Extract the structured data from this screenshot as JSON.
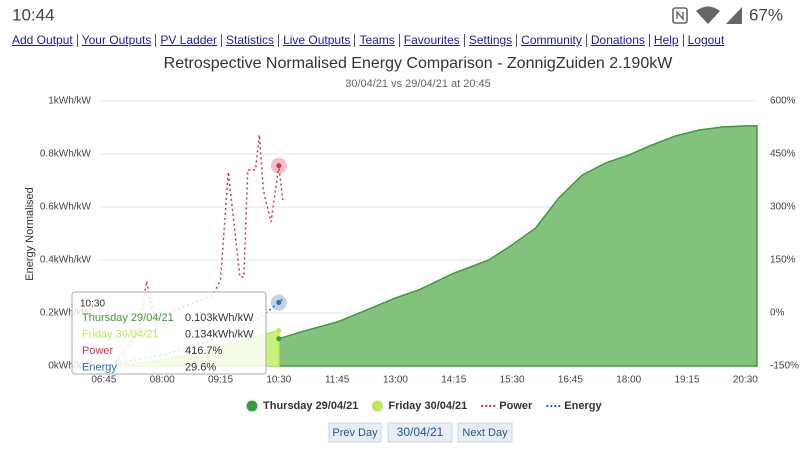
{
  "status_bar": {
    "time": "10:44",
    "battery": "67%"
  },
  "nav_links": [
    "Add Output",
    "Your Outputs",
    "PV Ladder",
    "Statistics",
    "Live Outputs",
    "Teams",
    "Favourites",
    "Settings",
    "Community",
    "Donations",
    "Help",
    "Logout"
  ],
  "chart_data": {
    "type": "line",
    "title": "Retrospective Normalised Energy Comparison - ZonnigZuiden 2.190kW",
    "subtitle": "30/04/21 vs 29/04/21 at 20:45",
    "y_label": "Energy Normalised",
    "xlim": [
      "06:40",
      "20:45"
    ],
    "xticks": [
      "06:45",
      "08:00",
      "09:15",
      "10:30",
      "11:45",
      "13:00",
      "14:15",
      "15:30",
      "16:45",
      "18:00",
      "19:15",
      "20:30"
    ],
    "ylim": [
      0,
      1
    ],
    "yticks": [
      {
        "value": 0,
        "label": "0kWh/kW"
      },
      {
        "value": 0.2,
        "label": "0.2kWh/kW"
      },
      {
        "value": 0.4,
        "label": "0.4kWh/kW"
      },
      {
        "value": 0.6,
        "label": "0.6kWh/kW"
      },
      {
        "value": 0.8,
        "label": "0.8kWh/kW"
      },
      {
        "value": 1,
        "label": "1kWh/kW"
      }
    ],
    "y2lim": [
      -150,
      600
    ],
    "y2ticks": [
      {
        "value": -150,
        "label": "-150%"
      },
      {
        "value": 0,
        "label": "0%"
      },
      {
        "value": 150,
        "label": "150%"
      },
      {
        "value": 300,
        "label": "300%"
      },
      {
        "value": 450,
        "label": "450%"
      },
      {
        "value": 600,
        "label": "600%"
      }
    ],
    "grid": true,
    "series": [
      {
        "name": "Thursday 29/04/21",
        "type": "area",
        "color": "#3d9a3d",
        "fill": "#83c27c",
        "x": [
          "06:40",
          "07:30",
          "08:00",
          "08:30",
          "09:00",
          "09:30",
          "10:00",
          "10:30",
          "11:00",
          "11:45",
          "12:30",
          "13:00",
          "13:30",
          "14:15",
          "15:00",
          "15:30",
          "16:00",
          "16:30",
          "17:00",
          "17:30",
          "18:00",
          "18:30",
          "19:00",
          "19:30",
          "20:00",
          "20:30",
          "20:45"
        ],
        "values": [
          0,
          0.01,
          0.02,
          0.035,
          0.05,
          0.07,
          0.088,
          0.103,
          0.13,
          0.166,
          0.22,
          0.257,
          0.287,
          0.35,
          0.4,
          0.457,
          0.52,
          0.634,
          0.72,
          0.766,
          0.796,
          0.834,
          0.868,
          0.89,
          0.902,
          0.906,
          0.906
        ]
      },
      {
        "name": "Friday 30/04/21",
        "type": "area",
        "color": "#b9ea5c",
        "fill": "#c9f27a",
        "x": [
          "06:40",
          "07:30",
          "08:30",
          "09:00",
          "09:30",
          "10:00",
          "10:30"
        ],
        "values": [
          0,
          0.01,
          0.04,
          0.06,
          0.085,
          0.11,
          0.134
        ]
      },
      {
        "name": "Power",
        "type": "line",
        "axis": "y2",
        "color": "#d3304c",
        "x": [
          "07:00",
          "07:30",
          "07:40",
          "07:50",
          "08:30",
          "09:05",
          "09:15",
          "09:25",
          "09:40",
          "09:45",
          "09:50",
          "10:00",
          "10:05",
          "10:10",
          "10:20",
          "10:30",
          "10:35"
        ],
        "values": [
          -140,
          -50,
          90,
          -20,
          20,
          50,
          93,
          399,
          102,
          102,
          405,
          405,
          504,
          348,
          258,
          416.7,
          320
        ]
      },
      {
        "name": "Energy",
        "type": "line",
        "axis": "y2",
        "color": "#2f6fb0",
        "x": [
          "06:40",
          "08:00",
          "09:00",
          "09:30",
          "10:00",
          "10:15",
          "10:30",
          "10:35"
        ],
        "values": [
          -150,
          -120,
          -80,
          -50,
          -20,
          3,
          29.6,
          40
        ]
      }
    ],
    "highlight_x": "10:30",
    "tooltip": {
      "time": "10:30",
      "rows": [
        {
          "label": "Thursday 29/04/21",
          "value": "0.103kWh/kW"
        },
        {
          "label": "Friday 30/04/21",
          "value": "0.134kWh/kW"
        },
        {
          "label": "Power",
          "value": "416.7%"
        },
        {
          "label": "Energy",
          "value": "29.6%"
        }
      ]
    }
  },
  "buttons": {
    "prev": "Prev Day",
    "date": "30/04/21",
    "next": "Next Day"
  }
}
